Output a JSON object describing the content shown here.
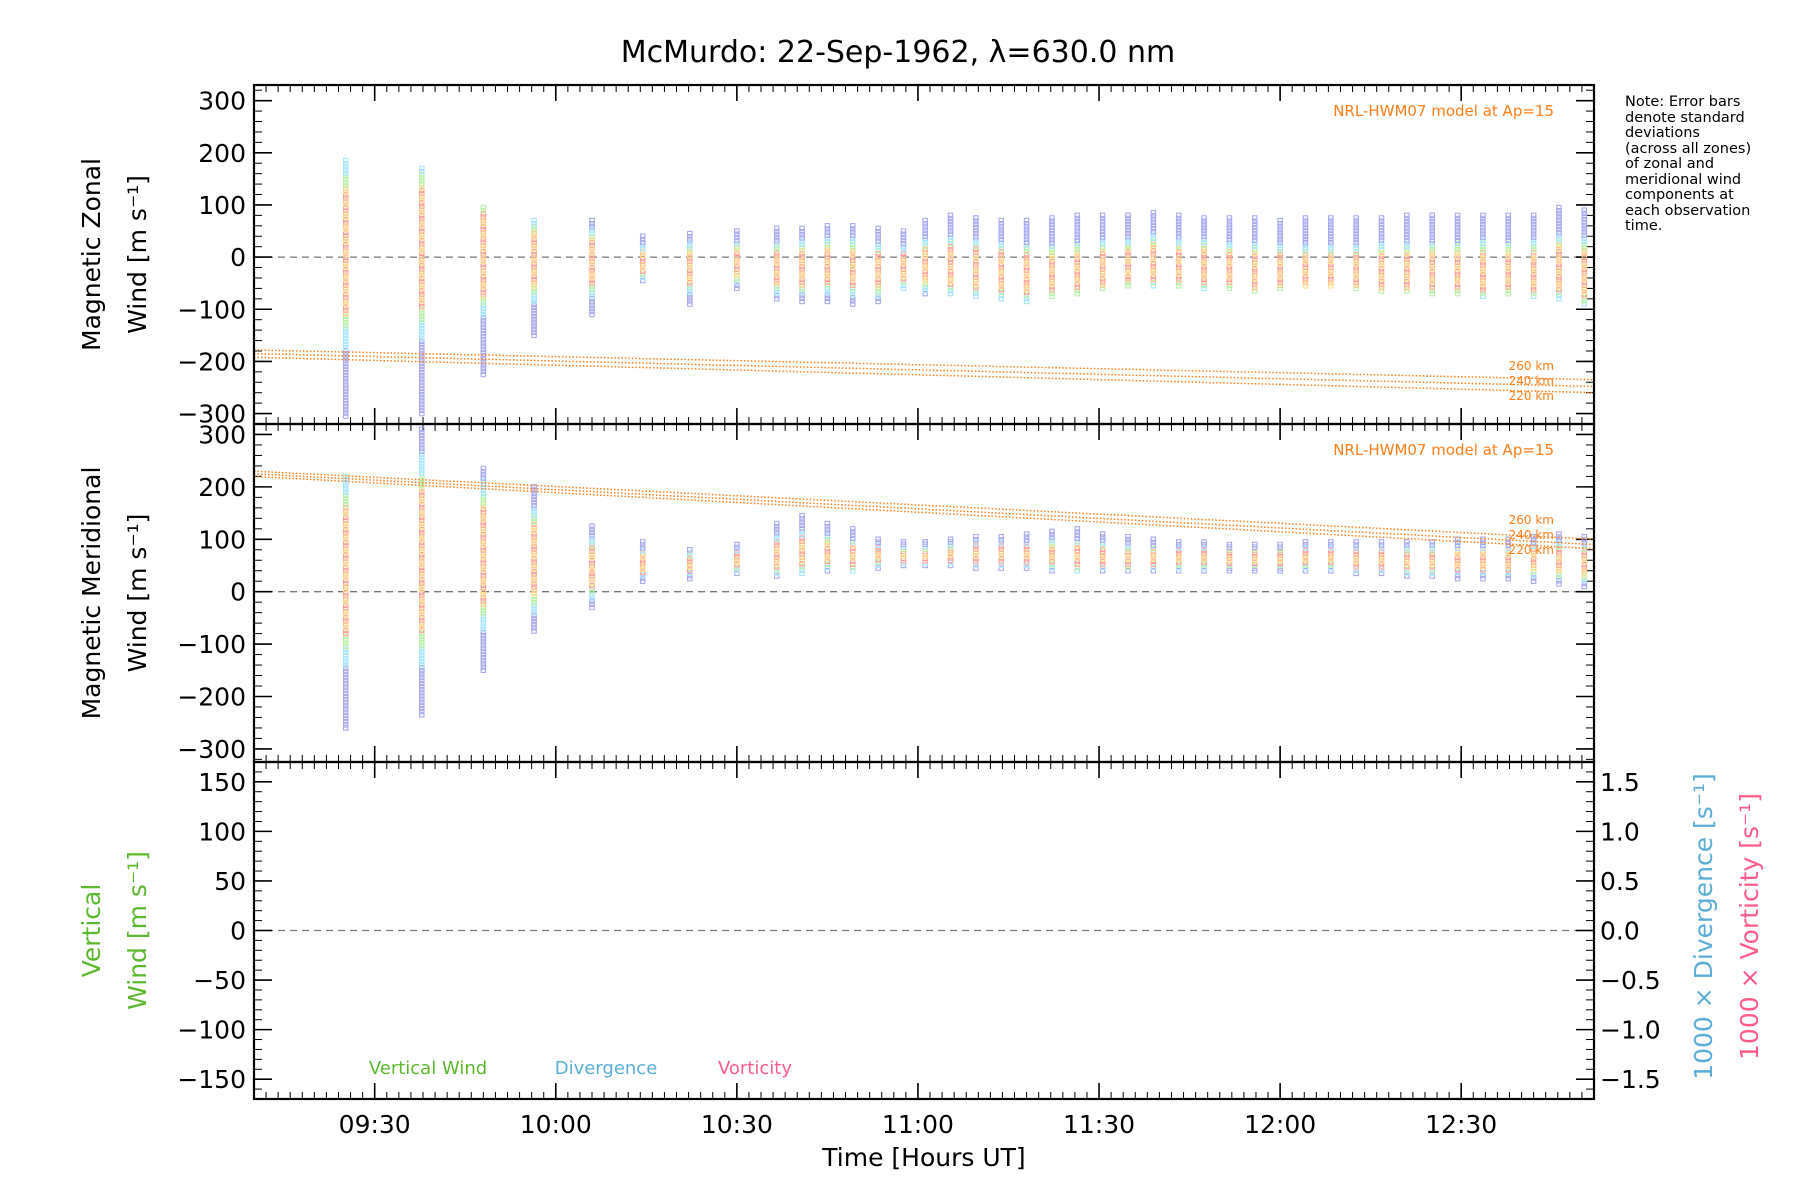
{
  "title": "McMurdo: 22-Sep-1962, λ=630.0 nm",
  "note": "Note: Error bars\ndenote standard\ndeviations\n(across all zones)\nof zonal and\nmeridional wind\ncomponents at\neach observation\ntime.",
  "x_axis": {
    "label": "Time [Hours UT]",
    "range_hours": [
      9.1667,
      12.8667
    ],
    "ticks": [
      {
        "v": 9.5,
        "t": "09:30"
      },
      {
        "v": 10.0,
        "t": "10:00"
      },
      {
        "v": 10.5,
        "t": "10:30"
      },
      {
        "v": 11.0,
        "t": "11:00"
      },
      {
        "v": 11.5,
        "t": "11:30"
      },
      {
        "v": 12.0,
        "t": "12:00"
      },
      {
        "v": 12.5,
        "t": "12:30"
      }
    ]
  },
  "colors": {
    "model": "#ff7f1a",
    "vertical": "#5cb82e",
    "divergence": "#5aaed6",
    "vorticity": "#ff5c8a",
    "zones": [
      "#ffe08a",
      "#ffcc8a",
      "#ffb39a",
      "#ff9a9a",
      "#b9f0a6",
      "#a6e6ff",
      "#a9a9f0"
    ]
  },
  "chart_data": [
    {
      "type": "scatter",
      "panel": "zonal",
      "ylabel": "Magnetic Zonal\nWind [m s⁻¹]",
      "ylim": [
        -320,
        330
      ],
      "yticks": [
        300,
        200,
        100,
        0,
        -100,
        -200,
        -300
      ],
      "model_label": "NRL-HWM07 model at Ap=15",
      "model": [
        {
          "name": "260 km",
          "y0": -178,
          "y1": -235
        },
        {
          "name": "240 km",
          "y0": -185,
          "y1": -248
        },
        {
          "name": "220 km",
          "y0": -192,
          "y1": -260
        }
      ],
      "observations": [
        {
          "t": 9.42,
          "lo": -305,
          "hi": 185,
          "c": 10
        },
        {
          "t": 9.63,
          "lo": -300,
          "hi": 170,
          "c": 20
        },
        {
          "t": 9.8,
          "lo": -225,
          "hi": 95,
          "c": 5
        },
        {
          "t": 9.94,
          "lo": -150,
          "hi": 70,
          "c": -5
        },
        {
          "t": 10.1,
          "lo": -110,
          "hi": 70,
          "c": -10
        },
        {
          "t": 10.24,
          "lo": -45,
          "hi": 40,
          "c": -10
        },
        {
          "t": 10.37,
          "lo": -90,
          "hi": 45,
          "c": -20
        },
        {
          "t": 10.5,
          "lo": -60,
          "hi": 50,
          "c": -10
        },
        {
          "t": 10.61,
          "lo": -80,
          "hi": 55,
          "c": -20
        },
        {
          "t": 10.68,
          "lo": -85,
          "hi": 55,
          "c": -20
        },
        {
          "t": 10.75,
          "lo": -85,
          "hi": 60,
          "c": -15
        },
        {
          "t": 10.82,
          "lo": -90,
          "hi": 60,
          "c": -20
        },
        {
          "t": 10.89,
          "lo": -85,
          "hi": 55,
          "c": -25
        },
        {
          "t": 10.96,
          "lo": -60,
          "hi": 50,
          "c": -20
        },
        {
          "t": 11.02,
          "lo": -70,
          "hi": 70,
          "c": -15
        },
        {
          "t": 11.09,
          "lo": -70,
          "hi": 80,
          "c": -15
        },
        {
          "t": 11.16,
          "lo": -75,
          "hi": 75,
          "c": -20
        },
        {
          "t": 11.23,
          "lo": -80,
          "hi": 70,
          "c": -25
        },
        {
          "t": 11.3,
          "lo": -85,
          "hi": 70,
          "c": -30
        },
        {
          "t": 11.37,
          "lo": -75,
          "hi": 75,
          "c": -30
        },
        {
          "t": 11.44,
          "lo": -70,
          "hi": 80,
          "c": -25
        },
        {
          "t": 11.51,
          "lo": -60,
          "hi": 80,
          "c": -20
        },
        {
          "t": 11.58,
          "lo": -55,
          "hi": 80,
          "c": -15
        },
        {
          "t": 11.65,
          "lo": -55,
          "hi": 85,
          "c": -10
        },
        {
          "t": 11.72,
          "lo": -55,
          "hi": 80,
          "c": -15
        },
        {
          "t": 11.79,
          "lo": -60,
          "hi": 75,
          "c": -15
        },
        {
          "t": 11.86,
          "lo": -60,
          "hi": 75,
          "c": -20
        },
        {
          "t": 11.93,
          "lo": -65,
          "hi": 75,
          "c": -25
        },
        {
          "t": 12.0,
          "lo": -60,
          "hi": 70,
          "c": -25
        },
        {
          "t": 12.07,
          "lo": -55,
          "hi": 75,
          "c": -25
        },
        {
          "t": 12.14,
          "lo": -55,
          "hi": 75,
          "c": -25
        },
        {
          "t": 12.21,
          "lo": -60,
          "hi": 75,
          "c": -25
        },
        {
          "t": 12.28,
          "lo": -65,
          "hi": 75,
          "c": -25
        },
        {
          "t": 12.35,
          "lo": -65,
          "hi": 80,
          "c": -25
        },
        {
          "t": 12.42,
          "lo": -70,
          "hi": 80,
          "c": -25
        },
        {
          "t": 12.49,
          "lo": -70,
          "hi": 80,
          "c": -25
        },
        {
          "t": 12.56,
          "lo": -75,
          "hi": 80,
          "c": -25
        },
        {
          "t": 12.63,
          "lo": -70,
          "hi": 80,
          "c": -25
        },
        {
          "t": 12.7,
          "lo": -75,
          "hi": 80,
          "c": -25
        },
        {
          "t": 12.77,
          "lo": -80,
          "hi": 95,
          "c": -20
        },
        {
          "t": 12.84,
          "lo": -90,
          "hi": 90,
          "c": -30
        }
      ]
    },
    {
      "type": "scatter",
      "panel": "meridional",
      "ylabel": "Magnetic Meridional\nWind [m s⁻¹]",
      "ylim": [
        -325,
        320
      ],
      "yticks": [
        300,
        200,
        100,
        0,
        -100,
        -200,
        -300
      ],
      "model_label": "NRL-HWM07 model at Ap=15",
      "model": [
        {
          "name": "260 km",
          "y0": 230,
          "y1": 100
        },
        {
          "name": "240 km",
          "y0": 225,
          "y1": 90
        },
        {
          "name": "220 km",
          "y0": 220,
          "y1": 82
        }
      ],
      "observations": [
        {
          "t": 9.42,
          "lo": -260,
          "hi": 220,
          "c": 40
        },
        {
          "t": 9.63,
          "lo": -235,
          "hi": 310,
          "c": 60
        },
        {
          "t": 9.8,
          "lo": -150,
          "hi": 235,
          "c": 70
        },
        {
          "t": 9.94,
          "lo": -75,
          "hi": 200,
          "c": 60
        },
        {
          "t": 10.1,
          "lo": -30,
          "hi": 125,
          "c": 45
        },
        {
          "t": 10.24,
          "lo": 20,
          "hi": 95,
          "c": 55
        },
        {
          "t": 10.37,
          "lo": 25,
          "hi": 80,
          "c": 55
        },
        {
          "t": 10.5,
          "lo": 35,
          "hi": 90,
          "c": 60
        },
        {
          "t": 10.61,
          "lo": 30,
          "hi": 130,
          "c": 70
        },
        {
          "t": 10.68,
          "lo": 35,
          "hi": 145,
          "c": 75
        },
        {
          "t": 10.75,
          "lo": 40,
          "hi": 130,
          "c": 75
        },
        {
          "t": 10.82,
          "lo": 40,
          "hi": 120,
          "c": 70
        },
        {
          "t": 10.89,
          "lo": 45,
          "hi": 100,
          "c": 70
        },
        {
          "t": 10.96,
          "lo": 50,
          "hi": 95,
          "c": 70
        },
        {
          "t": 11.02,
          "lo": 50,
          "hi": 95,
          "c": 70
        },
        {
          "t": 11.09,
          "lo": 50,
          "hi": 100,
          "c": 72
        },
        {
          "t": 11.16,
          "lo": 45,
          "hi": 105,
          "c": 72
        },
        {
          "t": 11.23,
          "lo": 45,
          "hi": 105,
          "c": 72
        },
        {
          "t": 11.3,
          "lo": 45,
          "hi": 110,
          "c": 72
        },
        {
          "t": 11.37,
          "lo": 40,
          "hi": 115,
          "c": 72
        },
        {
          "t": 11.44,
          "lo": 40,
          "hi": 120,
          "c": 70
        },
        {
          "t": 11.51,
          "lo": 40,
          "hi": 110,
          "c": 68
        },
        {
          "t": 11.58,
          "lo": 40,
          "hi": 105,
          "c": 65
        },
        {
          "t": 11.65,
          "lo": 40,
          "hi": 100,
          "c": 65
        },
        {
          "t": 11.72,
          "lo": 40,
          "hi": 95,
          "c": 65
        },
        {
          "t": 11.79,
          "lo": 40,
          "hi": 95,
          "c": 65
        },
        {
          "t": 11.86,
          "lo": 40,
          "hi": 90,
          "c": 65
        },
        {
          "t": 11.93,
          "lo": 40,
          "hi": 90,
          "c": 65
        },
        {
          "t": 12.0,
          "lo": 40,
          "hi": 90,
          "c": 65
        },
        {
          "t": 12.07,
          "lo": 40,
          "hi": 95,
          "c": 65
        },
        {
          "t": 12.14,
          "lo": 40,
          "hi": 95,
          "c": 65
        },
        {
          "t": 12.21,
          "lo": 35,
          "hi": 95,
          "c": 62
        },
        {
          "t": 12.28,
          "lo": 35,
          "hi": 95,
          "c": 62
        },
        {
          "t": 12.35,
          "lo": 30,
          "hi": 95,
          "c": 60
        },
        {
          "t": 12.42,
          "lo": 30,
          "hi": 95,
          "c": 60
        },
        {
          "t": 12.49,
          "lo": 25,
          "hi": 100,
          "c": 60
        },
        {
          "t": 12.56,
          "lo": 25,
          "hi": 100,
          "c": 60
        },
        {
          "t": 12.63,
          "lo": 25,
          "hi": 100,
          "c": 60
        },
        {
          "t": 12.7,
          "lo": 20,
          "hi": 105,
          "c": 60
        },
        {
          "t": 12.77,
          "lo": 15,
          "hi": 110,
          "c": 60
        },
        {
          "t": 12.84,
          "lo": 10,
          "hi": 105,
          "c": 55
        }
      ]
    },
    {
      "type": "line",
      "panel": "vertical",
      "ylabel": "Vertical\nWind [m s⁻¹]",
      "ylim": [
        -170,
        170
      ],
      "yticks": [
        150,
        100,
        50,
        0,
        -50,
        -100,
        -150
      ],
      "y2label_divergence": "1000 × Divergence [s⁻¹]",
      "y2label_vorticity": "1000 × Vorticity [s⁻¹]",
      "y2lim": [
        -1.7,
        1.7
      ],
      "y2ticks": [
        {
          "v": 1.5,
          "t": "1.5"
        },
        {
          "v": 1.0,
          "t": "1.0"
        },
        {
          "v": 0.5,
          "t": "0.5"
        },
        {
          "v": 0.0,
          "t": "0.0"
        },
        {
          "v": -0.5,
          "t": "−0.5"
        },
        {
          "v": -1.0,
          "t": "−1.0"
        },
        {
          "v": -1.5,
          "t": "−1.5"
        }
      ],
      "legend": [
        {
          "name": "Vertical Wind",
          "color": "#5cb82e"
        },
        {
          "name": "Divergence",
          "color": "#5aaed6"
        },
        {
          "name": "Vorticity",
          "color": "#ff5c8a"
        }
      ],
      "series": []
    }
  ]
}
